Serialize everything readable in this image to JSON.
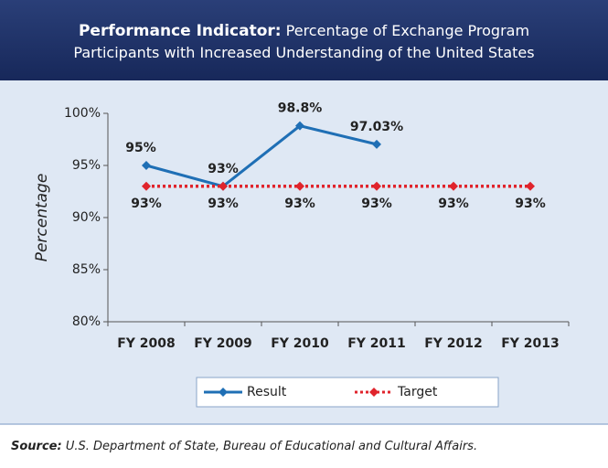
{
  "chart_data": {
    "type": "line",
    "title_label": "Performance Indicator:",
    "title": "Percentage of Exchange Program Participants with Increased Understanding of the United States",
    "ylabel": "Percentage",
    "categories": [
      "FY 2008",
      "FY 2009",
      "FY 2010",
      "FY 2011",
      "FY 2012",
      "FY 2013"
    ],
    "series": [
      {
        "name": "Result",
        "color": "#1f6fb5",
        "style": "solid",
        "values": [
          95,
          93,
          98.8,
          97.03,
          null,
          null
        ],
        "value_labels": [
          "95%",
          "93%",
          "98.8%",
          "97.03%",
          null,
          null
        ]
      },
      {
        "name": "Target",
        "color": "#e0242c",
        "style": "dotted",
        "values": [
          93,
          93,
          93,
          93,
          93,
          93
        ],
        "value_labels": [
          "93%",
          "93%",
          "93%",
          "93%",
          "93%",
          "93%"
        ]
      }
    ],
    "ylim": [
      80,
      100
    ],
    "yticks": [
      {
        "value": 80,
        "label": "80%"
      },
      {
        "value": 85,
        "label": "85%"
      },
      {
        "value": 90,
        "label": "90%"
      },
      {
        "value": 95,
        "label": "95%"
      },
      {
        "value": 100,
        "label": "100%"
      }
    ],
    "legend": "bottom",
    "source_label": "Source:",
    "source": "U.S. Department of State, Bureau of Educational and Cultural Affairs."
  }
}
